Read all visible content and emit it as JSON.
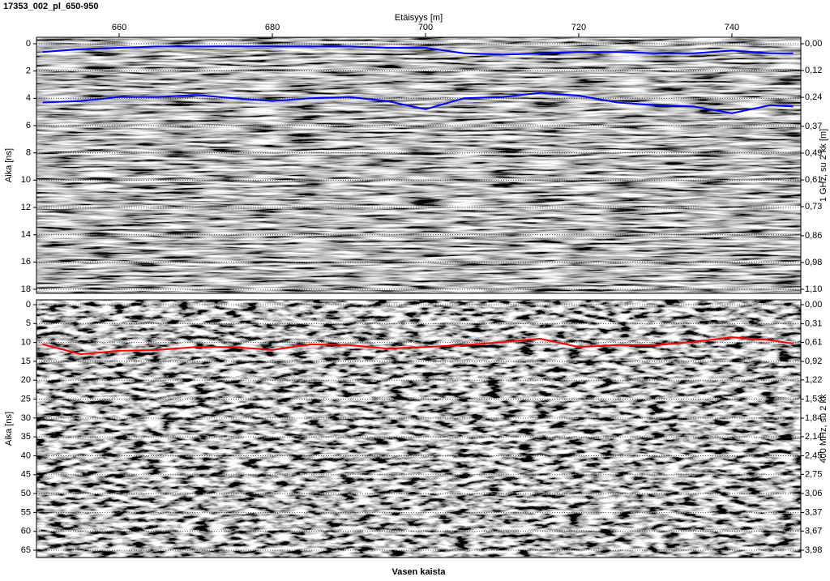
{
  "title": "17353_002_pl_650-950",
  "chart_data": [
    {
      "type": "line",
      "xlabel": "Etäisyys [m]",
      "ylabel": "Aika [ns]",
      "y2label": "1 GHz, su 2 kk [m]",
      "xlim": [
        649.2,
        749
      ],
      "xticks": [
        660,
        680,
        700,
        720,
        740
      ],
      "ylim": [
        0,
        18
      ],
      "y_inverted": true,
      "yticks": [
        0,
        2,
        4,
        6,
        8,
        10,
        12,
        14,
        16,
        18
      ],
      "y2lim": [
        0,
        1.1
      ],
      "y2ticks": [
        {
          "value": 0,
          "label": "0,00"
        },
        {
          "value": 0.12,
          "label": "0,12"
        },
        {
          "value": 0.24,
          "label": "0,24"
        },
        {
          "value": 0.37,
          "label": "0,37"
        },
        {
          "value": 0.49,
          "label": "0,49"
        },
        {
          "value": 0.61,
          "label": "0,61"
        },
        {
          "value": 0.73,
          "label": "0,73"
        },
        {
          "value": 0.86,
          "label": "0,86"
        },
        {
          "value": 0.98,
          "label": "0,98"
        },
        {
          "value": 1.1,
          "label": "1,10"
        }
      ],
      "grid": true,
      "x": [
        650,
        655,
        660,
        665,
        670,
        675,
        680,
        685,
        690,
        695,
        700,
        705,
        710,
        715,
        720,
        725,
        730,
        735,
        740,
        745,
        748
      ],
      "series": [
        {
          "color": "#0000ff",
          "values": [
            0.6,
            0.4,
            0.3,
            0.2,
            0.2,
            0.2,
            0.2,
            0.2,
            0.2,
            0.3,
            0.3,
            0.7,
            0.8,
            0.7,
            0.6,
            0.6,
            0.7,
            0.7,
            0.5,
            0.7,
            0.7
          ]
        },
        {
          "color": "#0000ff",
          "values": [
            4.3,
            4.2,
            3.9,
            3.9,
            3.75,
            4.0,
            4.2,
            4.0,
            3.9,
            4.2,
            4.8,
            4.0,
            3.9,
            3.6,
            3.8,
            4.3,
            4.5,
            4.6,
            5.1,
            4.5,
            4.6
          ]
        }
      ]
    },
    {
      "type": "line",
      "xlabel": "Vasen kaista",
      "ylabel": "Aika [ns]",
      "y2label": "400 MHz, su 2 kk",
      "xlim": [
        649.2,
        749
      ],
      "ylim": [
        0,
        65
      ],
      "y_inverted": true,
      "yticks": [
        0,
        5,
        10,
        15,
        20,
        25,
        30,
        35,
        40,
        45,
        50,
        55,
        60,
        65
      ],
      "y2lim": [
        0,
        3.98
      ],
      "y2ticks": [
        {
          "value": 0,
          "label": "0,00"
        },
        {
          "value": 0.31,
          "label": "0,31"
        },
        {
          "value": 0.61,
          "label": "0,61"
        },
        {
          "value": 0.92,
          "label": "0,92"
        },
        {
          "value": 1.22,
          "label": "1,22"
        },
        {
          "value": 1.53,
          "label": "1,53"
        },
        {
          "value": 1.84,
          "label": "1,84"
        },
        {
          "value": 2.14,
          "label": "2,14"
        },
        {
          "value": 2.45,
          "label": "2,45"
        },
        {
          "value": 2.75,
          "label": "2,75"
        },
        {
          "value": 3.06,
          "label": "3,06"
        },
        {
          "value": 3.37,
          "label": "3,37"
        },
        {
          "value": 3.67,
          "label": "3,67"
        },
        {
          "value": 3.98,
          "label": "3,98"
        }
      ],
      "grid": true,
      "x": [
        650,
        655,
        660,
        665,
        670,
        675,
        680,
        685,
        690,
        695,
        700,
        705,
        710,
        715,
        720,
        725,
        730,
        735,
        740,
        745,
        748
      ],
      "series": [
        {
          "color": "#ff0000",
          "values": [
            10.5,
            13.1,
            12.2,
            12.0,
            11.2,
            11.2,
            12.0,
            10.5,
            10.7,
            11.6,
            11.2,
            10.7,
            9.9,
            9.0,
            11.2,
            10.7,
            10.7,
            9.9,
            8.6,
            9.4,
            10.3
          ]
        }
      ]
    }
  ]
}
